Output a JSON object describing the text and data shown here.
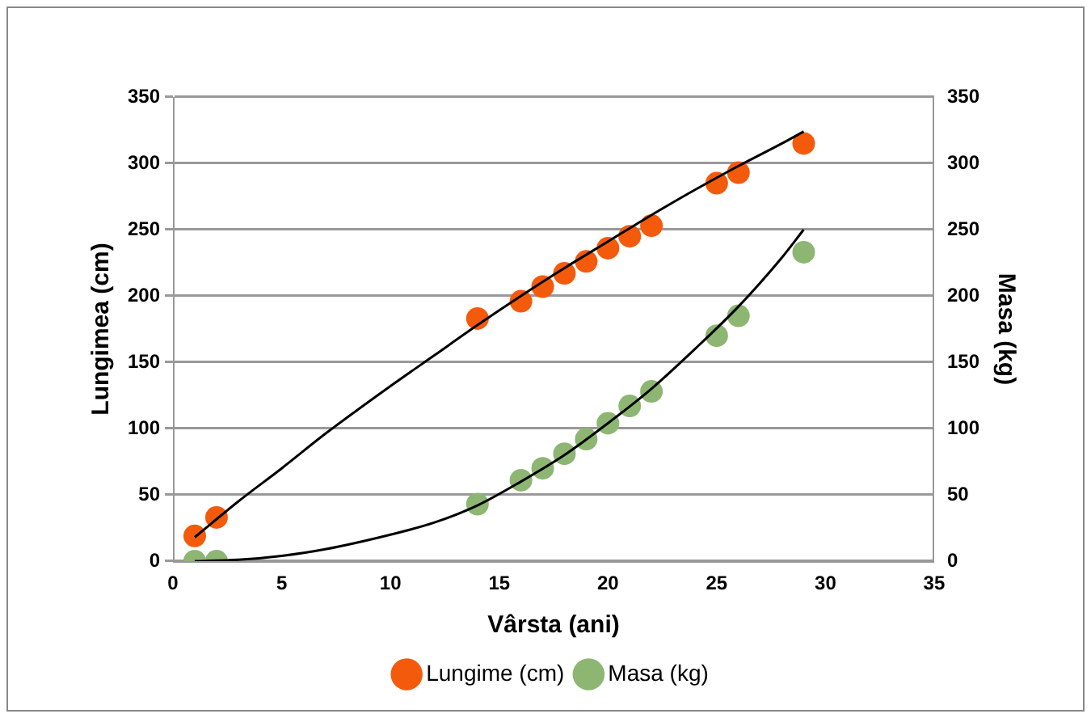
{
  "chart_data": {
    "type": "scatter",
    "xlabel": "Vârsta (ani)",
    "ylabel": "Lungimea (cm)",
    "y2label": "Masa (kg)",
    "xlim": [
      0,
      35
    ],
    "xticks": [
      0,
      5,
      10,
      15,
      20,
      25,
      30,
      35
    ],
    "ylim": [
      0,
      350
    ],
    "yticks": [
      0,
      50,
      100,
      150,
      200,
      250,
      300,
      350
    ],
    "y2lim": [
      0,
      350
    ],
    "y2ticks": [
      0,
      50,
      100,
      150,
      200,
      250,
      300,
      350
    ],
    "grid": "y",
    "legend": "bottom",
    "marker": "circle",
    "series": [
      {
        "name": "Lungime (cm)",
        "color": "#f45a0c",
        "x": [
          1,
          2,
          14,
          16,
          17,
          18,
          19,
          20,
          21,
          22,
          25,
          26,
          29
        ],
        "values": [
          19,
          33,
          183,
          196,
          207,
          217,
          226,
          236,
          245,
          253,
          285,
          293,
          315
        ]
      },
      {
        "name": "Masa (kg)",
        "color": "#8db673",
        "x": [
          1,
          2,
          14,
          16,
          17,
          18,
          19,
          20,
          21,
          22,
          25,
          26,
          29
        ],
        "values": [
          0,
          0,
          43,
          61,
          70,
          81,
          92,
          104,
          117,
          128,
          170,
          185,
          233
        ]
      },
      {
        "type": "line",
        "marker": "none",
        "color": "#000000",
        "x": [
          1,
          3,
          5,
          7,
          10,
          12,
          14,
          16,
          18,
          20,
          22,
          24,
          26,
          28,
          29
        ],
        "values": [
          18,
          45,
          70,
          96,
          132,
          155,
          178,
          200,
          221,
          241,
          261,
          280,
          298,
          315,
          324
        ]
      },
      {
        "type": "line",
        "marker": "none",
        "color": "#000000",
        "x": [
          1,
          3,
          5,
          7,
          10,
          12,
          14,
          16,
          18,
          20,
          22,
          24,
          26,
          28,
          29
        ],
        "values": [
          0,
          1,
          4,
          9,
          20,
          29,
          42,
          60,
          80,
          104,
          130,
          160,
          192,
          229,
          250
        ]
      }
    ]
  }
}
